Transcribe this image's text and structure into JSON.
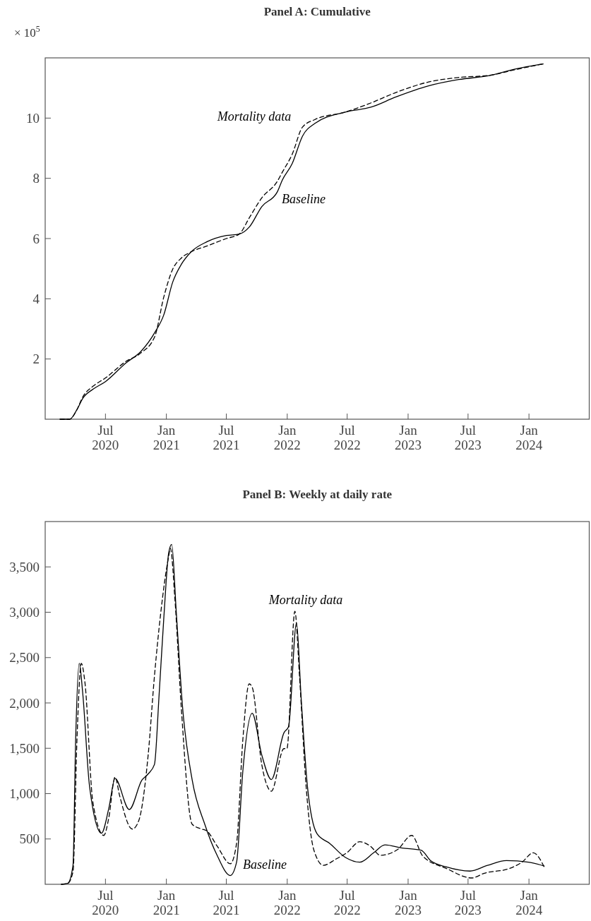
{
  "chart_data": [
    {
      "type": "line",
      "title": "Panel A: Cumulative",
      "ylabel": "× 10$^{5}$",
      "xlim": [
        "2020-01-01",
        "2024-07-01"
      ],
      "ylim": [
        0,
        12
      ],
      "yticks": [
        2,
        4,
        6,
        8,
        10
      ],
      "xticks": [
        {
          "value": "2020-07-01",
          "label": "Jul 2020"
        },
        {
          "value": "2021-01-01",
          "label": "Jan 2021"
        },
        {
          "value": "2021-07-01",
          "label": "Jul 2021"
        },
        {
          "value": "2022-01-01",
          "label": "Jan 2022"
        },
        {
          "value": "2022-07-01",
          "label": "Jul 2022"
        },
        {
          "value": "2023-01-01",
          "label": "Jan 2023"
        },
        {
          "value": "2023-07-01",
          "label": "Jul 2023"
        },
        {
          "value": "2024-01-01",
          "label": "Jan 2024"
        }
      ],
      "x": [
        "2020-02-15",
        "2020-03-15",
        "2020-04-05",
        "2020-04-24",
        "2020-05-25",
        "2020-07-01",
        "2020-09-01",
        "2020-10-16",
        "2020-11-27",
        "2020-12-24",
        "2021-01-20",
        "2021-02-15",
        "2021-03-17",
        "2021-05-03",
        "2021-07-01",
        "2021-08-09",
        "2021-09-09",
        "2021-10-16",
        "2021-12-02",
        "2021-12-17",
        "2022-01-16",
        "2022-02-16",
        "2022-03-25",
        "2022-06-25",
        "2022-09-10",
        "2022-11-25",
        "2023-03-04",
        "2023-06-03",
        "2023-09-03",
        "2023-11-25",
        "2024-02-13"
      ],
      "series": [
        {
          "name": "Baseline",
          "color": "#000000",
          "line_style": "solid",
          "values": [
            0,
            0,
            0.3,
            0.7,
            1.0,
            1.25,
            1.87,
            2.25,
            2.88,
            3.46,
            4.55,
            5.14,
            5.56,
            5.89,
            6.1,
            6.15,
            6.39,
            7.06,
            7.55,
            7.94,
            8.49,
            9.4,
            9.82,
            10.2,
            10.36,
            10.7,
            11.07,
            11.28,
            11.41,
            11.64,
            11.8
          ]
        },
        {
          "name": "Mortality data",
          "color": "#000000",
          "line_style": "dashed",
          "values": [
            0,
            0,
            0.3,
            0.75,
            1.1,
            1.37,
            1.92,
            2.2,
            2.75,
            4.05,
            4.98,
            5.35,
            5.56,
            5.75,
            6.0,
            6.15,
            6.7,
            7.35,
            7.9,
            8.2,
            8.8,
            9.7,
            9.95,
            10.2,
            10.5,
            10.85,
            11.2,
            11.35,
            11.42,
            11.62,
            11.8
          ]
        }
      ]
    },
    {
      "type": "line",
      "title": "Panel B: Weekly at daily rate",
      "xlim": [
        "2020-01-01",
        "2024-07-01"
      ],
      "ylim": [
        0,
        4000
      ],
      "yticks": [
        500,
        {
          "value": 1000,
          "label": "1,000"
        },
        {
          "value": 1500,
          "label": "1,500"
        },
        {
          "value": 2000,
          "label": "2,000"
        },
        {
          "value": 2500,
          "label": "2,500"
        },
        {
          "value": 3000,
          "label": "3,000"
        },
        {
          "value": 3500,
          "label": "3,500"
        }
      ],
      "xticks": [
        {
          "value": "2020-07-01",
          "label": "Jul 2020"
        },
        {
          "value": "2021-01-01",
          "label": "Jan 2021"
        },
        {
          "value": "2021-07-01",
          "label": "Jul 2021"
        },
        {
          "value": "2022-01-01",
          "label": "Jan 2022"
        },
        {
          "value": "2022-07-01",
          "label": "Jul 2022"
        },
        {
          "value": "2023-01-01",
          "label": "Jan 2023"
        },
        {
          "value": "2023-07-01",
          "label": "Jul 2023"
        },
        {
          "value": "2024-01-01",
          "label": "Jan 2024"
        }
      ],
      "series": [
        {
          "name": "Baseline",
          "color": "#000000",
          "line_style": "solid",
          "x": [
            "2020-02-19",
            "2020-03-09",
            "2020-03-25",
            "2020-04-02",
            "2020-04-13",
            "2020-04-23",
            "2020-05-14",
            "2020-06-19",
            "2020-07-11",
            "2020-07-30",
            "2020-09-11",
            "2020-10-19",
            "2020-11-07",
            "2020-11-26",
            "2020-12-10",
            "2020-12-24",
            "2021-01-08",
            "2021-01-17",
            "2021-01-31",
            "2021-02-19",
            "2021-03-20",
            "2021-04-27",
            "2021-06-04",
            "2021-07-13",
            "2021-08-01",
            "2021-08-20",
            "2021-09-17",
            "2021-10-16",
            "2021-11-14",
            "2021-12-22",
            "2022-01-05",
            "2022-01-29",
            "2022-02-12",
            "2022-03-03",
            "2022-04-01",
            "2022-05-09",
            "2022-06-26",
            "2022-08-08",
            "2022-09-19",
            "2022-10-23",
            "2022-12-14",
            "2023-02-09",
            "2023-03-10",
            "2023-04-27",
            "2023-07-07",
            "2023-08-29",
            "2023-10-25",
            "2023-12-30",
            "2024-02-16"
          ],
          "values": [
            0,
            10,
            209,
            1600,
            2436,
            2123,
            1079,
            564,
            835,
            1166,
            825,
            1148,
            1218,
            1322,
            2088,
            2923,
            3654,
            3748,
            2993,
            1949,
            1148,
            661,
            313,
            97,
            244,
            1253,
            1886,
            1427,
            1155,
            1670,
            1740,
            2881,
            2053,
            1079,
            557,
            452,
            296,
            244,
            348,
            435,
            400,
            376,
            261,
            191,
            146,
            209,
            261,
            244,
            202
          ]
        },
        {
          "name": "Mortality data",
          "color": "#000000",
          "line_style": "dashed",
          "x": [
            "2020-02-19",
            "2020-03-09",
            "2020-03-25",
            "2020-04-06",
            "2020-04-19",
            "2020-04-30",
            "2020-05-24",
            "2020-06-26",
            "2020-07-11",
            "2020-07-30",
            "2020-08-13",
            "2020-09-20",
            "2020-10-09",
            "2020-11-07",
            "2020-11-26",
            "2020-12-15",
            "2021-01-08",
            "2021-01-13",
            "2021-01-27",
            "2021-02-15",
            "2021-03-20",
            "2021-04-18",
            "2021-05-02",
            "2021-06-04",
            "2021-07-13",
            "2021-08-01",
            "2021-08-20",
            "2021-09-08",
            "2021-09-17",
            "2021-10-16",
            "2021-11-14",
            "2021-12-22",
            "2021-12-31",
            "2022-01-24",
            "2022-02-07",
            "2022-02-27",
            "2022-03-22",
            "2022-04-20",
            "2022-05-28",
            "2022-06-30",
            "2022-08-08",
            "2022-09-10",
            "2022-10-09",
            "2022-11-30",
            "2023-01-12",
            "2023-02-14",
            "2023-04-27",
            "2023-07-12",
            "2023-08-19",
            "2023-11-03",
            "2023-12-11",
            "2024-01-14",
            "2024-02-16"
          ],
          "values": [
            0,
            10,
            139,
            1600,
            2436,
            2227,
            905,
            539,
            731,
            1183,
            974,
            609,
            696,
            1427,
            2297,
            2993,
            3619,
            3706,
            3132,
            1949,
            661,
            609,
            592,
            418,
            226,
            452,
            1600,
            2210,
            2175,
            1322,
            1027,
            1496,
            1496,
            3010,
            2297,
            1079,
            383,
            209,
            278,
            348,
            470,
            418,
            320,
            383,
            539,
            313,
            174,
            70,
            122,
            174,
            244,
            348,
            191
          ]
        }
      ]
    }
  ]
}
